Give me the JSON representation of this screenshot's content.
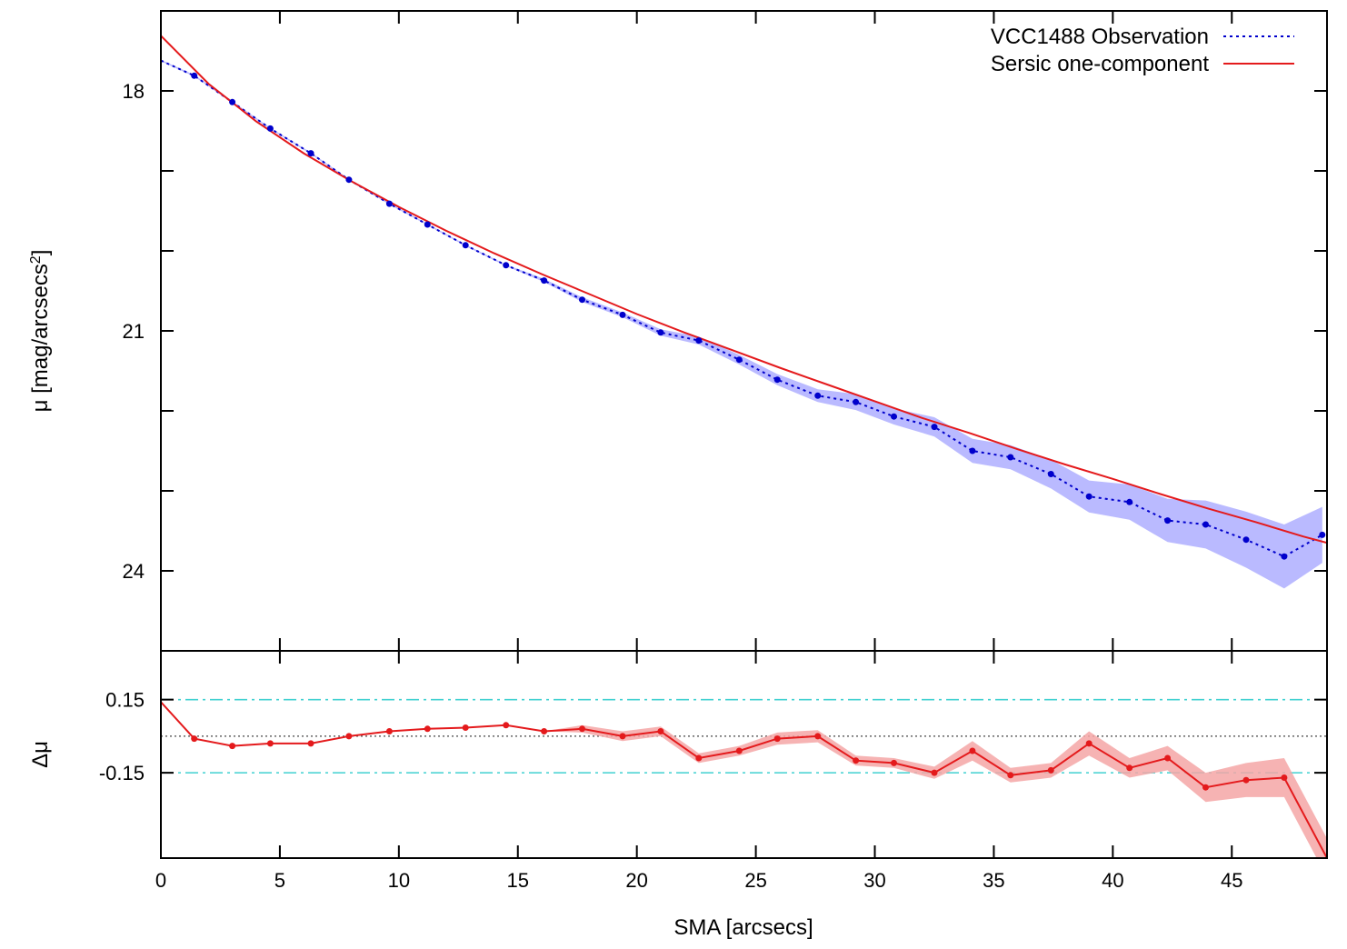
{
  "chart_data": [
    {
      "type": "line",
      "panel": "profile",
      "ylabel": "μ [mag/arcsecs²]",
      "ylabel_main": "μ [mag/arcsecs",
      "ylabel_sup": "2",
      "ylabel_tail": "]",
      "xlim": [
        0,
        49
      ],
      "ylim": [
        25,
        17
      ],
      "y_reversed": true,
      "yticks_major": [
        18,
        21,
        24
      ],
      "yticks_minor": [
        19,
        20,
        22,
        23
      ],
      "yticks_major_labels": [
        "18",
        "21",
        "24"
      ],
      "legend_position": "top-right",
      "legend": [
        "VCC1488 Observation",
        "Sersic one-component"
      ],
      "colors": {
        "observation": "#0000cc",
        "model": "#e41a1c",
        "obs_band": "#b3b3ff"
      },
      "series": [
        {
          "name": "VCC1488 Observation",
          "style": "dotted-with-points",
          "x": [
            0,
            1.4,
            3.0,
            4.6,
            6.3,
            7.9,
            9.6,
            11.2,
            12.8,
            14.5,
            16.1,
            17.7,
            19.4,
            21.0,
            22.6,
            24.3,
            25.9,
            27.6,
            29.2,
            30.8,
            32.5,
            34.1,
            35.7,
            37.4,
            39.0,
            40.7,
            42.3,
            43.9,
            45.6,
            47.2,
            48.8
          ],
          "y": [
            17.62,
            17.81,
            18.14,
            18.47,
            18.78,
            19.11,
            19.41,
            19.67,
            19.93,
            20.18,
            20.37,
            20.61,
            20.8,
            21.02,
            21.12,
            21.36,
            21.61,
            21.81,
            21.89,
            22.07,
            22.2,
            22.5,
            22.58,
            22.79,
            23.07,
            23.14,
            23.37,
            23.42,
            23.61,
            23.82,
            23.55
          ],
          "err": [
            0.01,
            0.01,
            0.01,
            0.01,
            0.01,
            0.01,
            0.01,
            0.01,
            0.01,
            0.01,
            0.02,
            0.03,
            0.03,
            0.04,
            0.05,
            0.06,
            0.07,
            0.08,
            0.1,
            0.1,
            0.12,
            0.15,
            0.15,
            0.18,
            0.2,
            0.22,
            0.27,
            0.3,
            0.35,
            0.4,
            0.35
          ],
          "markers_from_index": 1,
          "markers_to_index": 30
        },
        {
          "name": "Sersic one-component",
          "style": "solid",
          "x": [
            0,
            2,
            4,
            6,
            8,
            10,
            12,
            14,
            16,
            18,
            20,
            22,
            24,
            26,
            28,
            30,
            32,
            34,
            36,
            38,
            40,
            42,
            44,
            46,
            48,
            49
          ],
          "y": [
            17.31,
            17.91,
            18.38,
            18.78,
            19.13,
            19.45,
            19.75,
            20.03,
            20.29,
            20.54,
            20.79,
            21.02,
            21.24,
            21.46,
            21.67,
            21.88,
            22.09,
            22.28,
            22.48,
            22.67,
            22.85,
            23.04,
            23.22,
            23.39,
            23.57,
            23.65
          ]
        }
      ]
    },
    {
      "type": "line",
      "panel": "residual",
      "xlabel": "SMA [arcsecs]",
      "ylabel": "Δμ",
      "xlim": [
        0,
        49
      ],
      "ylim": [
        -0.5,
        0.35
      ],
      "xticks": [
        0,
        5,
        10,
        15,
        20,
        25,
        30,
        35,
        40,
        45
      ],
      "xtick_labels": [
        "0",
        "5",
        "10",
        "15",
        "20",
        "25",
        "30",
        "35",
        "40",
        "45"
      ],
      "yticks": [
        0.15,
        -0.15
      ],
      "ytick_labels": [
        "0.15",
        "-0.15"
      ],
      "reference_lines": [
        {
          "y": 0.15,
          "style": "dash-dot",
          "color": "#40d0d0"
        },
        {
          "y": -0.15,
          "style": "dash-dot",
          "color": "#40d0d0"
        },
        {
          "y": 0,
          "style": "dotted",
          "color": "#444444"
        }
      ],
      "colors": {
        "residual": "#e41a1c",
        "band": "#f4a6a6"
      },
      "series": [
        {
          "name": "residual",
          "x": [
            0,
            1.4,
            3.0,
            4.6,
            6.3,
            7.9,
            9.6,
            11.2,
            12.8,
            14.5,
            16.1,
            17.7,
            19.4,
            21.0,
            22.6,
            24.3,
            25.9,
            27.6,
            29.2,
            30.8,
            32.5,
            34.1,
            35.7,
            37.4,
            39.0,
            40.7,
            42.3,
            43.9,
            45.6,
            47.2,
            49.0
          ],
          "y": [
            0.14,
            -0.01,
            -0.04,
            -0.03,
            -0.03,
            0.0,
            0.02,
            0.03,
            0.035,
            0.045,
            0.02,
            0.03,
            0.0,
            0.02,
            -0.09,
            -0.06,
            -0.01,
            0.0,
            -0.1,
            -0.11,
            -0.15,
            -0.06,
            -0.16,
            -0.14,
            -0.03,
            -0.13,
            -0.09,
            -0.21,
            -0.18,
            -0.17,
            -0.5
          ],
          "err": [
            0,
            0,
            0,
            0,
            0,
            0,
            0,
            0,
            0,
            0,
            0,
            0.015,
            0.02,
            0.02,
            0.02,
            0.02,
            0.025,
            0.025,
            0.02,
            0.02,
            0.025,
            0.04,
            0.03,
            0.03,
            0.05,
            0.04,
            0.05,
            0.06,
            0.07,
            0.08,
            0.08
          ],
          "markers_from_index": 1,
          "markers_to_index": 29
        }
      ]
    }
  ]
}
